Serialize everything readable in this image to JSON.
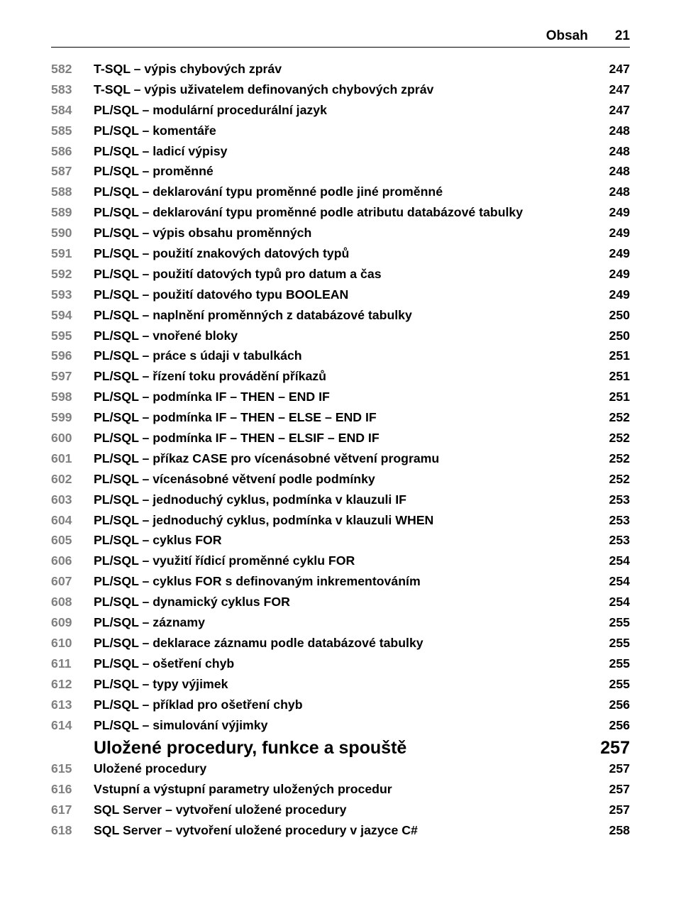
{
  "header": {
    "title": "Obsah",
    "page": "21"
  },
  "entries": [
    {
      "num": "582",
      "title": "T-SQL – výpis chybových zpráv",
      "page": "247"
    },
    {
      "num": "583",
      "title": "T-SQL – výpis uživatelem definovaných chybových zpráv",
      "page": "247"
    },
    {
      "num": "584",
      "title": "PL/SQL – modulární procedurální jazyk",
      "page": "247"
    },
    {
      "num": "585",
      "title": "PL/SQL – komentáře",
      "page": "248"
    },
    {
      "num": "586",
      "title": "PL/SQL – ladicí výpisy",
      "page": "248"
    },
    {
      "num": "587",
      "title": "PL/SQL – proměnné",
      "page": "248"
    },
    {
      "num": "588",
      "title": "PL/SQL – deklarování typu proměnné podle jiné proměnné",
      "page": "248"
    },
    {
      "num": "589",
      "title": "PL/SQL – deklarování typu proměnné podle atributu databázové tabulky",
      "page": "249"
    },
    {
      "num": "590",
      "title": "PL/SQL – výpis obsahu proměnných",
      "page": "249"
    },
    {
      "num": "591",
      "title": "PL/SQL – použití znakových datových typů",
      "page": "249"
    },
    {
      "num": "592",
      "title": "PL/SQL – použití datových typů pro datum a čas",
      "page": "249"
    },
    {
      "num": "593",
      "title": "PL/SQL – použití datového typu BOOLEAN",
      "page": "249"
    },
    {
      "num": "594",
      "title": "PL/SQL – naplnění proměnných z databázové tabulky",
      "page": "250"
    },
    {
      "num": "595",
      "title": "PL/SQL – vnořené bloky",
      "page": "250"
    },
    {
      "num": "596",
      "title": "PL/SQL – práce s údaji v tabulkách",
      "page": "251"
    },
    {
      "num": "597",
      "title": "PL/SQL – řízení toku provádění příkazů",
      "page": "251"
    },
    {
      "num": "598",
      "title": "PL/SQL – podmínka IF – THEN – END IF",
      "page": "251"
    },
    {
      "num": "599",
      "title": "PL/SQL – podmínka IF – THEN – ELSE – END IF",
      "page": "252"
    },
    {
      "num": "600",
      "title": "PL/SQL – podmínka IF – THEN – ELSIF – END IF",
      "page": "252"
    },
    {
      "num": "601",
      "title": "PL/SQL – příkaz CASE pro vícenásobné větvení programu",
      "page": "252"
    },
    {
      "num": "602",
      "title": "PL/SQL – vícenásobné větvení podle podmínky",
      "page": "252"
    },
    {
      "num": "603",
      "title": "PL/SQL – jednoduchý cyklus, podmínka v klauzuli IF",
      "page": "253"
    },
    {
      "num": "604",
      "title": "PL/SQL – jednoduchý cyklus, podmínka v klauzuli WHEN",
      "page": "253"
    },
    {
      "num": "605",
      "title": "PL/SQL – cyklus FOR",
      "page": "253"
    },
    {
      "num": "606",
      "title": "PL/SQL – využití řídicí proměnné cyklu FOR",
      "page": "254"
    },
    {
      "num": "607",
      "title": "PL/SQL – cyklus FOR s definovaným inkrementováním",
      "page": "254"
    },
    {
      "num": "608",
      "title": "PL/SQL – dynamický cyklus FOR",
      "page": "254"
    },
    {
      "num": "609",
      "title": "PL/SQL – záznamy",
      "page": "255"
    },
    {
      "num": "610",
      "title": "PL/SQL – deklarace záznamu podle databázové tabulky",
      "page": "255"
    },
    {
      "num": "611",
      "title": "PL/SQL – ošetření chyb",
      "page": "255"
    },
    {
      "num": "612",
      "title": "PL/SQL – typy výjimek",
      "page": "255"
    },
    {
      "num": "613",
      "title": "PL/SQL – příklad pro ošetření chyb",
      "page": "256"
    },
    {
      "num": "614",
      "title": "PL/SQL – simulování výjimky",
      "page": "256"
    },
    {
      "num": "",
      "title": "Uložené procedury, funkce a spouště",
      "page": "257",
      "section": true
    },
    {
      "num": "615",
      "title": "Uložené procedury",
      "page": "257"
    },
    {
      "num": "616",
      "title": "Vstupní a výstupní parametry uložených procedur",
      "page": "257"
    },
    {
      "num": "617",
      "title": "SQL Server – vytvoření uložené procedury",
      "page": "257"
    },
    {
      "num": "618",
      "title": "SQL Server – vytvoření uložené procedury v jazyce C#",
      "page": "258"
    }
  ]
}
